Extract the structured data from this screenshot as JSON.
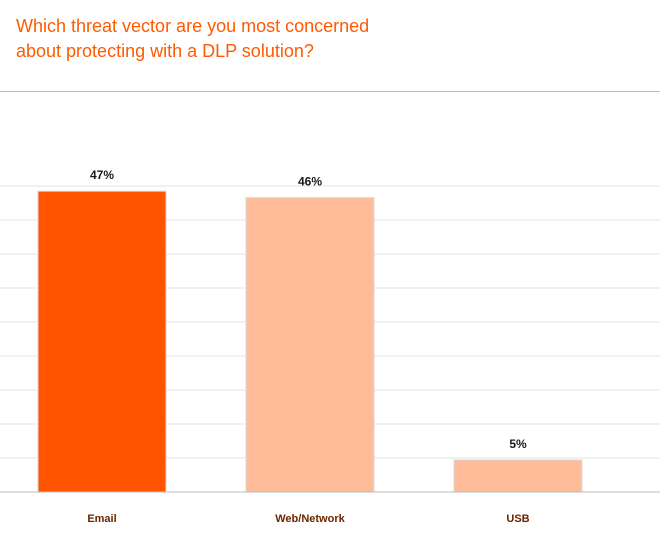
{
  "header": {
    "title_line1": "Which threat vector are you most concerned",
    "title_line2": "about protecting with a DLP solution?"
  },
  "colors": {
    "title": "#ff5a00",
    "bar_highlight": "#ff5500",
    "bar_default": "#ffbc98",
    "bar_outline": "#d8d8d8",
    "gridline": "#e3e3e3",
    "axis": "#bdbdbd",
    "category_text": "#6b2600"
  },
  "chart_data": {
    "type": "bar",
    "categories": [
      "Email",
      "Web/Network",
      "USB"
    ],
    "values": [
      47,
      46,
      5
    ],
    "value_labels": [
      "47%",
      "46%",
      "5%"
    ],
    "highlight": [
      true,
      false,
      false
    ],
    "title": "Which threat vector are you most concerned about protecting with a DLP solution?",
    "xlabel": "",
    "ylabel": "",
    "ylim": [
      0,
      50
    ],
    "grid": true,
    "legend": "none"
  }
}
